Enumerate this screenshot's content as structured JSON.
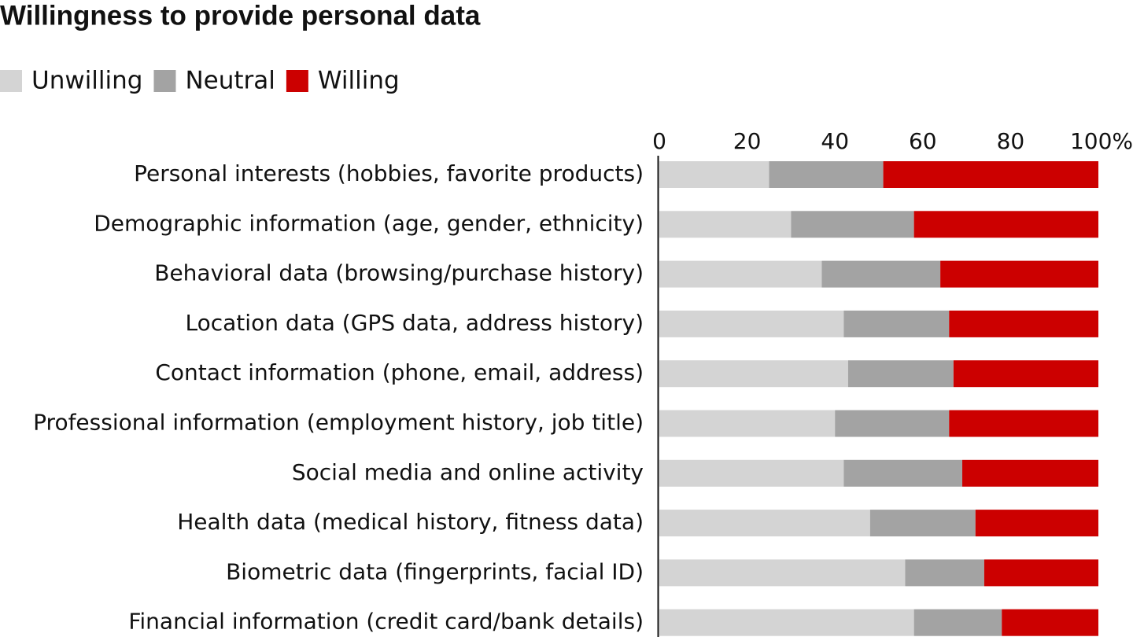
{
  "chart_data": {
    "type": "stacked-bar-horizontal",
    "title": "Willingness to provide personal data",
    "categories": [
      "Personal interests (hobbies, favorite products)",
      "Demographic information (age, gender, ethnicity)",
      "Behavioral data (browsing/purchase history)",
      "Location data (GPS data, address history)",
      "Contact information (phone, email, address)",
      "Professional information (employment history, job title)",
      "Social media and online activity",
      "Health data (medical history, fitness data)",
      "Biometric data (fingerprints, facial ID)",
      "Financial information (credit card/bank details)"
    ],
    "series": [
      {
        "name": "Unwilling",
        "color": "#d4d4d4",
        "values": [
          25,
          30,
          37,
          42,
          43,
          40,
          42,
          48,
          56,
          58
        ]
      },
      {
        "name": "Neutral",
        "color": "#a3a3a3",
        "values": [
          26,
          28,
          27,
          24,
          24,
          26,
          27,
          24,
          18,
          20
        ]
      },
      {
        "name": "Willing",
        "color": "#cc0000",
        "values": [
          49,
          42,
          36,
          34,
          33,
          34,
          31,
          28,
          26,
          22
        ]
      }
    ],
    "xlim": [
      0,
      100
    ],
    "xticks": [
      0,
      20,
      40,
      60,
      80,
      {
        "value": 100,
        "label": "100%"
      }
    ]
  }
}
